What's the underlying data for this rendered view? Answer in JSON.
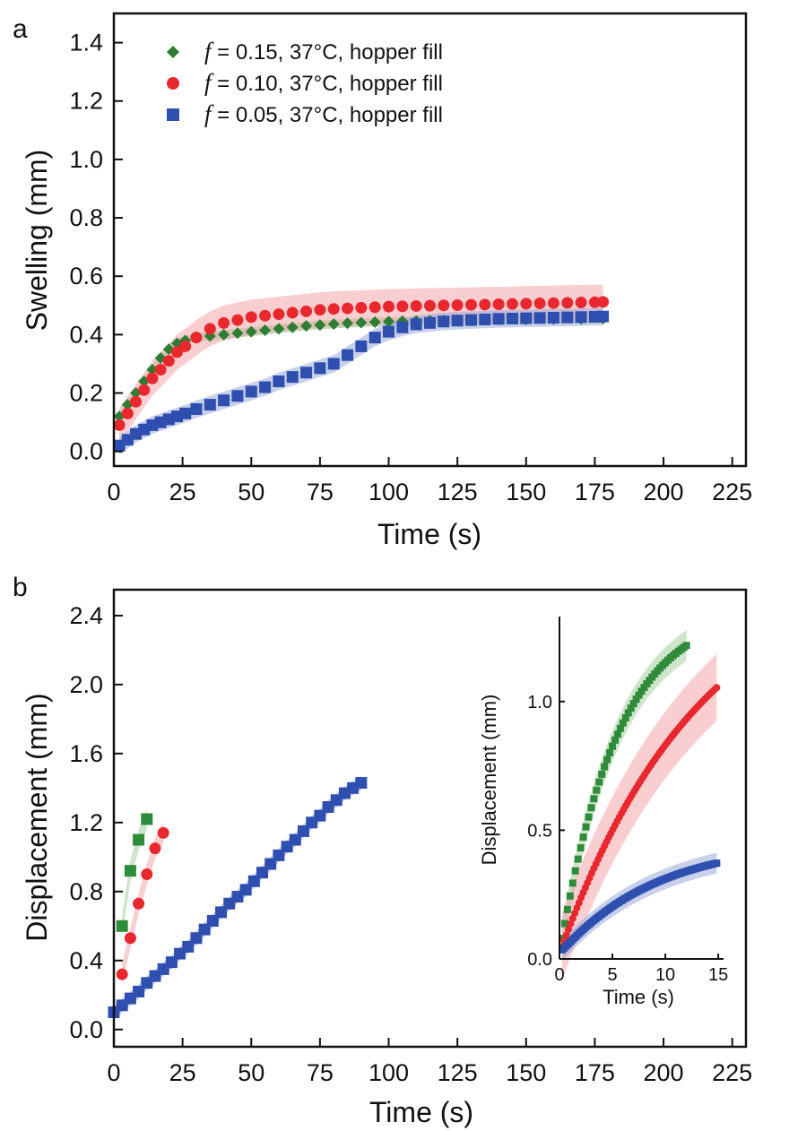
{
  "chart_data": [
    {
      "type": "scatter",
      "panel_label": "a",
      "xlabel": "Time (s)",
      "ylabel": "Swelling (mm)",
      "xlim": [
        0,
        230
      ],
      "ylim": [
        -0.05,
        1.5
      ],
      "xticks": [
        0,
        25,
        50,
        75,
        100,
        125,
        150,
        175,
        200,
        225
      ],
      "yticks": [
        0.0,
        0.2,
        0.4,
        0.6,
        0.8,
        1.0,
        1.2,
        1.4
      ],
      "ytick_labels": [
        "0.0",
        "0.2",
        "0.4",
        "0.6",
        "0.8",
        "1.0",
        "1.2",
        "1.4"
      ],
      "legend_position": "top-left",
      "series": [
        {
          "legend_italic": "f",
          "name": " = 0.15, 37°C, hopper fill",
          "marker": "diamond",
          "color": "#2e7d32",
          "band_color": "#8fbf8a",
          "x": [
            2,
            5,
            8,
            11,
            14,
            17,
            20,
            23,
            26,
            30,
            35,
            40,
            45,
            50,
            55,
            60,
            65,
            70,
            75,
            80,
            85,
            90,
            95,
            100,
            105,
            110,
            115,
            120,
            125,
            130,
            140,
            150,
            160,
            170,
            178
          ],
          "y": [
            0.12,
            0.16,
            0.2,
            0.24,
            0.28,
            0.32,
            0.35,
            0.37,
            0.38,
            0.39,
            0.395,
            0.4,
            0.405,
            0.41,
            0.415,
            0.42,
            0.425,
            0.43,
            0.433,
            0.436,
            0.439,
            0.441,
            0.443,
            0.445,
            0.446,
            0.447,
            0.448,
            0.449,
            0.45,
            0.45,
            0.451,
            0.452,
            0.453,
            0.454,
            0.455
          ],
          "band": 0.015
        },
        {
          "legend_italic": "f",
          "name": " = 0.10, 37°C, hopper fill",
          "marker": "circle",
          "color": "#e8282e",
          "band_color": "#f3a6aa",
          "x": [
            2,
            5,
            8,
            11,
            14,
            17,
            20,
            23,
            26,
            30,
            35,
            40,
            45,
            50,
            55,
            60,
            65,
            70,
            75,
            80,
            85,
            90,
            95,
            100,
            105,
            110,
            115,
            120,
            125,
            130,
            135,
            140,
            145,
            150,
            155,
            160,
            165,
            170,
            175,
            178
          ],
          "y": [
            0.09,
            0.13,
            0.17,
            0.21,
            0.25,
            0.28,
            0.31,
            0.34,
            0.36,
            0.39,
            0.42,
            0.44,
            0.45,
            0.46,
            0.465,
            0.47,
            0.475,
            0.48,
            0.485,
            0.488,
            0.49,
            0.492,
            0.494,
            0.496,
            0.497,
            0.498,
            0.499,
            0.5,
            0.501,
            0.502,
            0.503,
            0.504,
            0.505,
            0.506,
            0.507,
            0.508,
            0.509,
            0.51,
            0.511,
            0.512
          ],
          "band": 0.06
        },
        {
          "legend_italic": "f",
          "name": " = 0.05, 37°C, hopper fill",
          "marker": "square",
          "color": "#2e4fb0",
          "band_color": "#9aa9d8",
          "x": [
            2,
            5,
            8,
            11,
            14,
            17,
            20,
            23,
            26,
            30,
            35,
            40,
            45,
            50,
            55,
            60,
            65,
            70,
            75,
            80,
            85,
            90,
            95,
            100,
            105,
            110,
            115,
            120,
            125,
            130,
            135,
            140,
            145,
            150,
            155,
            160,
            165,
            170,
            175,
            178
          ],
          "y": [
            0.02,
            0.04,
            0.06,
            0.075,
            0.09,
            0.1,
            0.11,
            0.12,
            0.13,
            0.145,
            0.16,
            0.175,
            0.19,
            0.205,
            0.22,
            0.24,
            0.255,
            0.27,
            0.285,
            0.3,
            0.33,
            0.36,
            0.39,
            0.41,
            0.425,
            0.435,
            0.44,
            0.445,
            0.448,
            0.45,
            0.452,
            0.454,
            0.455,
            0.456,
            0.457,
            0.458,
            0.459,
            0.46,
            0.461,
            0.462
          ],
          "band": 0.03
        }
      ]
    },
    {
      "type": "scatter",
      "panel_label": "b",
      "xlabel": "Time (s)",
      "ylabel": "Displacement (mm)",
      "xlim": [
        0,
        230
      ],
      "ylim": [
        -0.1,
        2.55
      ],
      "xticks": [
        0,
        25,
        50,
        75,
        100,
        125,
        150,
        175,
        200,
        225
      ],
      "yticks": [
        0.0,
        0.4,
        0.8,
        1.2,
        1.6,
        2.0,
        2.4
      ],
      "ytick_labels": [
        "0.0",
        "0.4",
        "0.8",
        "1.2",
        "1.6",
        "2.0",
        "2.4"
      ],
      "series": [
        {
          "marker": "square",
          "color": "#2e8b3a",
          "band_color": "#a7d0a0",
          "x": [
            3,
            6,
            9,
            12
          ],
          "y": [
            0.6,
            0.92,
            1.1,
            1.22
          ],
          "band": 0.06
        },
        {
          "marker": "circle",
          "color": "#e8282e",
          "band_color": "#f3a6aa",
          "x": [
            3,
            6,
            9,
            12,
            15,
            18
          ],
          "y": [
            0.32,
            0.53,
            0.73,
            0.9,
            1.05,
            1.14
          ],
          "band": 0.06
        },
        {
          "marker": "square",
          "color": "#2e4fb0",
          "band_color": "#9aa9d8",
          "x": [
            0,
            3,
            6,
            9,
            12,
            15,
            18,
            21,
            24,
            27,
            30,
            33,
            36,
            39,
            42,
            45,
            48,
            51,
            54,
            57,
            60,
            63,
            66,
            69,
            72,
            75,
            78,
            81,
            84,
            87,
            90
          ],
          "y": [
            0.1,
            0.14,
            0.18,
            0.22,
            0.27,
            0.31,
            0.35,
            0.39,
            0.44,
            0.48,
            0.53,
            0.58,
            0.63,
            0.68,
            0.73,
            0.77,
            0.81,
            0.86,
            0.91,
            0.96,
            1.01,
            1.06,
            1.1,
            1.15,
            1.2,
            1.24,
            1.29,
            1.33,
            1.37,
            1.4,
            1.43
          ],
          "band": 0.04
        }
      ],
      "inset": {
        "xlabel": "Time (s)",
        "ylabel": "Displacement (mm)",
        "xlim": [
          0,
          15.5
        ],
        "ylim": [
          0,
          1.33
        ],
        "xticks": [
          0,
          5,
          10,
          15
        ],
        "yticks": [
          0.0,
          0.5,
          1.0
        ],
        "ytick_labels": [
          "0.0",
          "0.5",
          "1.0"
        ],
        "series": [
          {
            "marker": "square",
            "color": "#2e8b3a",
            "band_color": "#a7d0a0",
            "x_start": 0.25,
            "x_end": 12.0,
            "step": 0.25,
            "a": 1.35,
            "tau": 5.5,
            "band": 0.06
          },
          {
            "marker": "circle",
            "color": "#e8282e",
            "band_color": "#f3a6aa",
            "x_start": 0.25,
            "x_end": 15.0,
            "step": 0.2,
            "a": 1.55,
            "tau": 13.5,
            "band": 0.13
          },
          {
            "marker": "square",
            "color": "#2e4fb0",
            "band_color": "#9aa9d8",
            "x_start": 0.25,
            "x_end": 15.0,
            "step": 0.2,
            "a": 0.32,
            "tau": 9.0,
            "linear": true,
            "band": 0.04
          }
        ]
      }
    }
  ]
}
